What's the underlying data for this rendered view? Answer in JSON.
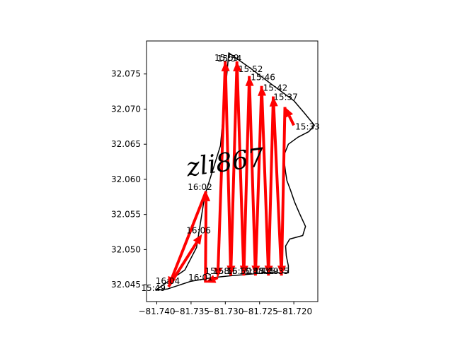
{
  "chart_data": {
    "type": "line",
    "title": "",
    "xlabel": "",
    "ylabel": "",
    "xlim": [
      -81.7415,
      -81.7165
    ],
    "ylim": [
      32.0426,
      32.0797
    ],
    "x_ticks": [
      -81.74,
      -81.735,
      -81.73,
      -81.725,
      -81.72
    ],
    "x_tick_labels": [
      "−81.740",
      "−81.735",
      "−81.730",
      "−81.725",
      "−81.720"
    ],
    "y_ticks": [
      32.045,
      32.05,
      32.055,
      32.06,
      32.065,
      32.07,
      32.075
    ],
    "y_tick_labels": [
      "32.045",
      "32.050",
      "32.055",
      "32.060",
      "32.065",
      "32.070",
      "32.075"
    ],
    "watermark": "zli867",
    "colors": {
      "path": "#ff0000",
      "boundary": "#000000"
    },
    "boundary": [
      [
        -81.7402,
        32.0442
      ],
      [
        -81.7383,
        32.0455
      ],
      [
        -81.7359,
        32.0471
      ],
      [
        -81.7342,
        32.0503
      ],
      [
        -81.733,
        32.0577
      ],
      [
        -81.7307,
        32.0648
      ],
      [
        -81.7295,
        32.078
      ],
      [
        -81.7263,
        32.0758
      ],
      [
        -81.7232,
        32.0735
      ],
      [
        -81.72,
        32.0712
      ],
      [
        -81.7185,
        32.0695
      ],
      [
        -81.717,
        32.0677
      ],
      [
        -81.7178,
        32.0668
      ],
      [
        -81.7194,
        32.066
      ],
      [
        -81.7208,
        32.065
      ],
      [
        -81.7215,
        32.0633
      ],
      [
        -81.7212,
        32.061
      ],
      [
        -81.721,
        32.0598
      ],
      [
        -81.7205,
        32.0585
      ],
      [
        -81.7199,
        32.0568
      ],
      [
        -81.7192,
        32.0552
      ],
      [
        -81.7183,
        32.0533
      ],
      [
        -81.7187,
        32.052
      ],
      [
        -81.7206,
        32.0515
      ],
      [
        -81.7212,
        32.0505
      ],
      [
        -81.7211,
        32.0491
      ],
      [
        -81.7208,
        32.0477
      ],
      [
        -81.7208,
        32.0467
      ],
      [
        -81.724,
        32.0467
      ],
      [
        -81.729,
        32.0463
      ],
      [
        -81.732,
        32.046
      ],
      [
        -81.735,
        32.0455
      ],
      [
        -81.7384,
        32.0444
      ],
      [
        -81.7402,
        32.0442
      ]
    ],
    "arrows": [
      {
        "from": [
          -81.72,
          32.0677
        ],
        "to": [
          -81.7213,
          32.0703
        ]
      },
      {
        "from": [
          -81.7213,
          32.0703
        ],
        "to": [
          -81.7218,
          32.0463
        ]
      },
      {
        "from": [
          -81.7218,
          32.0463
        ],
        "to": [
          -81.723,
          32.0718
        ]
      },
      {
        "from": [
          -81.723,
          32.0718
        ],
        "to": [
          -81.7237,
          32.0463
        ]
      },
      {
        "from": [
          -81.7237,
          32.0463
        ],
        "to": [
          -81.7247,
          32.0733
        ]
      },
      {
        "from": [
          -81.7247,
          32.0733
        ],
        "to": [
          -81.7256,
          32.0463
        ]
      },
      {
        "from": [
          -81.7256,
          32.0463
        ],
        "to": [
          -81.7265,
          32.0747
        ]
      },
      {
        "from": [
          -81.7265,
          32.0747
        ],
        "to": [
          -81.7273,
          32.0463
        ]
      },
      {
        "from": [
          -81.7273,
          32.0463
        ],
        "to": [
          -81.7283,
          32.0768
        ]
      },
      {
        "from": [
          -81.7283,
          32.0768
        ],
        "to": [
          -81.7292,
          32.0463
        ]
      },
      {
        "from": [
          -81.7292,
          32.0463
        ],
        "to": [
          -81.73,
          32.0768
        ]
      },
      {
        "from": [
          -81.73,
          32.0768
        ],
        "to": [
          -81.7311,
          32.046
        ]
      },
      {
        "from": [
          -81.7311,
          32.046
        ],
        "to": [
          -81.7329,
          32.0453
        ]
      },
      {
        "from": [
          -81.7329,
          32.0453
        ],
        "to": [
          -81.7328,
          32.0583
        ]
      },
      {
        "from": [
          -81.7328,
          32.0583
        ],
        "to": [
          -81.7383,
          32.0447
        ]
      },
      {
        "from": [
          -81.7383,
          32.0447
        ],
        "to": [
          -81.7334,
          32.0522
        ]
      }
    ],
    "time_labels": [
      {
        "text": "15:59",
        "x": -81.7298,
        "y": 32.0769
      },
      {
        "text": "15:54",
        "x": -81.7294,
        "y": 32.0768
      },
      {
        "text": "15:52",
        "x": -81.7263,
        "y": 32.0753
      },
      {
        "text": "15:46",
        "x": -81.7245,
        "y": 32.0741
      },
      {
        "text": "15:42",
        "x": -81.7227,
        "y": 32.0726
      },
      {
        "text": "15:37",
        "x": -81.7212,
        "y": 32.0713
      },
      {
        "text": "15:33",
        "x": -81.718,
        "y": 32.0671
      },
      {
        "text": "16:02",
        "x": -81.7337,
        "y": 32.0585
      },
      {
        "text": "16:06",
        "x": -81.7339,
        "y": 32.0523
      },
      {
        "text": "16:04",
        "x": -81.7384,
        "y": 32.0451
      },
      {
        "text": "15:49",
        "x": -81.7405,
        "y": 32.0441
      },
      {
        "text": "16:01",
        "x": -81.7336,
        "y": 32.0456
      },
      {
        "text": "15:58",
        "x": -81.7312,
        "y": 32.0465
      },
      {
        "text": "15:56",
        "x": -81.73,
        "y": 32.0465
      },
      {
        "text": "15:50",
        "x": -81.728,
        "y": 32.0465
      },
      {
        "text": "15:48",
        "x": -81.7262,
        "y": 32.0465
      },
      {
        "text": "15:44",
        "x": -81.725,
        "y": 32.0465
      },
      {
        "text": "15:39",
        "x": -81.724,
        "y": 32.0465
      },
      {
        "text": "15:35",
        "x": -81.7225,
        "y": 32.0465
      }
    ]
  }
}
